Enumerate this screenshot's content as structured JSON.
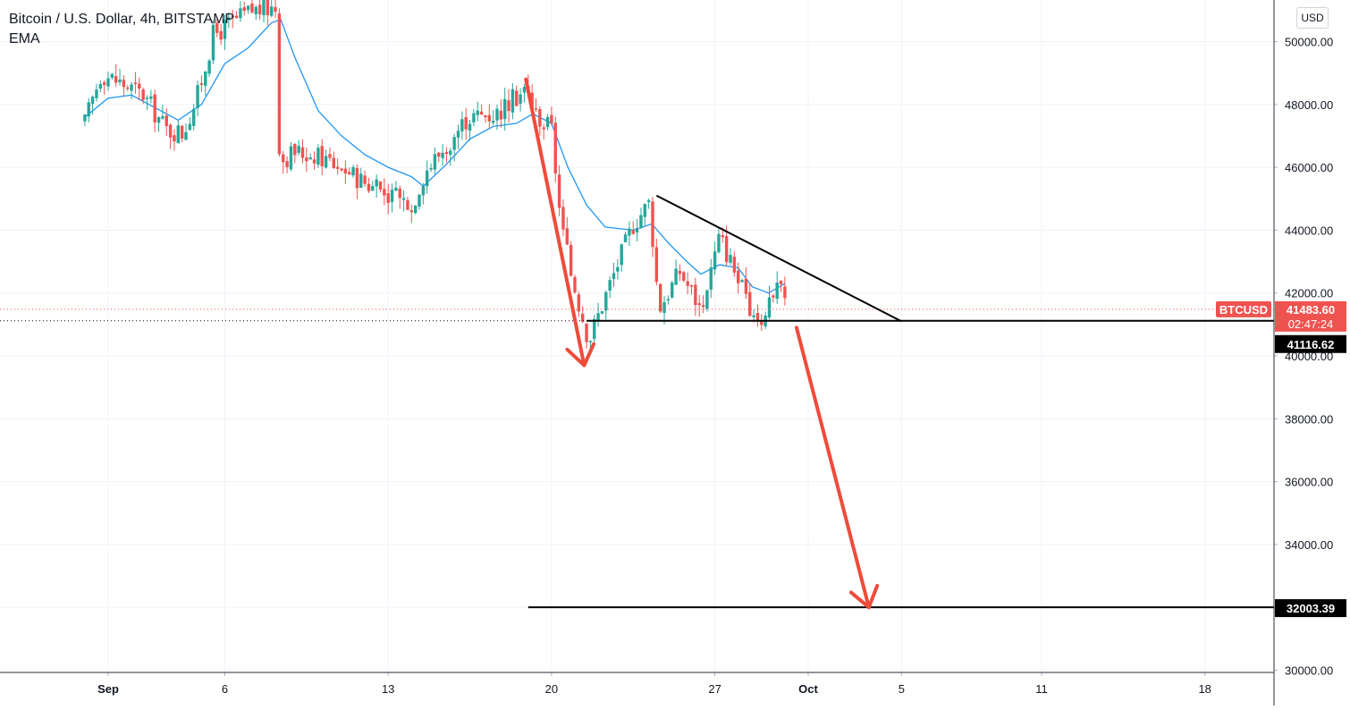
{
  "header": {
    "symbol_title": "Bitcoin / U.S. Dollar, 4h, BITSTAMP",
    "indicator": "EMA"
  },
  "currency_button": "USD",
  "colors": {
    "up": "#26a69a",
    "down": "#ef5350",
    "ema": "#2196f3",
    "arrow": "#ef4b3b",
    "price_label": "#ef5350",
    "drawing_line": "#000000",
    "grid": "#f0f3fa"
  },
  "chart_data": {
    "type": "candlestick",
    "title": "Bitcoin / U.S. Dollar, 4h, BITSTAMP",
    "indicator": "EMA",
    "y_axis": {
      "range": [
        30000,
        51000
      ],
      "ticks": [
        "30000.00",
        "32000.00",
        "34000.00",
        "36000.00",
        "38000.00",
        "40000.00",
        "42000.00",
        "44000.00",
        "46000.00",
        "48000.00",
        "50000.00"
      ]
    },
    "x_axis": {
      "ticks": [
        {
          "label": "Sep",
          "day": 1
        },
        {
          "label": "6",
          "day": 6
        },
        {
          "label": "13",
          "day": 13
        },
        {
          "label": "20",
          "day": 20
        },
        {
          "label": "27",
          "day": 27
        },
        {
          "label": "Oct",
          "day": 31
        },
        {
          "label": "5",
          "day": 35
        },
        {
          "label": "11",
          "day": 41
        },
        {
          "label": "18",
          "day": 48
        }
      ]
    },
    "anchors": [
      {
        "t": 0,
        "p": 47400
      },
      {
        "t": 0.7,
        "p": 49000
      },
      {
        "t": 1.5,
        "p": 48700
      },
      {
        "t": 2.5,
        "p": 48300
      },
      {
        "t": 3.5,
        "p": 47200
      },
      {
        "t": 4.2,
        "p": 47100
      },
      {
        "t": 4.8,
        "p": 48200
      },
      {
        "t": 5.5,
        "p": 50200
      },
      {
        "t": 6.3,
        "p": 50600
      },
      {
        "t": 7.2,
        "p": 51000
      },
      {
        "t": 8.2,
        "p": 51100
      },
      {
        "t": 8.35,
        "p": 46200
      },
      {
        "t": 9.0,
        "p": 46500
      },
      {
        "t": 10.2,
        "p": 46300
      },
      {
        "t": 11.0,
        "p": 46000
      },
      {
        "t": 12.5,
        "p": 45300
      },
      {
        "t": 14.0,
        "p": 44800
      },
      {
        "t": 14.6,
        "p": 45900
      },
      {
        "t": 15.5,
        "p": 46700
      },
      {
        "t": 16.4,
        "p": 47600
      },
      {
        "t": 17.6,
        "p": 47700
      },
      {
        "t": 18.9,
        "p": 48500
      },
      {
        "t": 19.3,
        "p": 47700
      },
      {
        "t": 20.0,
        "p": 47200
      },
      {
        "t": 20.4,
        "p": 44200
      },
      {
        "t": 20.8,
        "p": 42700
      },
      {
        "t": 21.6,
        "p": 40500
      },
      {
        "t": 22.5,
        "p": 42300
      },
      {
        "t": 23.5,
        "p": 44200
      },
      {
        "t": 24.2,
        "p": 44900
      },
      {
        "t": 24.6,
        "p": 41500
      },
      {
        "t": 25.5,
        "p": 42700
      },
      {
        "t": 26.4,
        "p": 41500
      },
      {
        "t": 27.2,
        "p": 43800
      },
      {
        "t": 27.8,
        "p": 42800
      },
      {
        "t": 28.4,
        "p": 41500
      },
      {
        "t": 29.0,
        "p": 41200
      },
      {
        "t": 29.6,
        "p": 42300
      },
      {
        "t": 30.2,
        "p": 41480
      }
    ],
    "ema": [
      {
        "t": 0,
        "p": 47600
      },
      {
        "t": 1,
        "p": 48200
      },
      {
        "t": 2,
        "p": 48300
      },
      {
        "t": 3,
        "p": 47900
      },
      {
        "t": 4,
        "p": 47500
      },
      {
        "t": 5,
        "p": 48000
      },
      {
        "t": 6,
        "p": 49300
      },
      {
        "t": 7,
        "p": 49800
      },
      {
        "t": 8,
        "p": 50600
      },
      {
        "t": 8.4,
        "p": 50700
      },
      {
        "t": 9,
        "p": 49500
      },
      {
        "t": 10,
        "p": 47800
      },
      {
        "t": 11,
        "p": 47000
      },
      {
        "t": 12,
        "p": 46400
      },
      {
        "t": 13,
        "p": 46000
      },
      {
        "t": 14,
        "p": 45700
      },
      {
        "t": 14.5,
        "p": 45400
      },
      {
        "t": 15.5,
        "p": 46100
      },
      {
        "t": 16.5,
        "p": 46900
      },
      {
        "t": 17.5,
        "p": 47300
      },
      {
        "t": 18.5,
        "p": 47400
      },
      {
        "t": 19.2,
        "p": 47700
      },
      {
        "t": 20.0,
        "p": 47400
      },
      {
        "t": 20.7,
        "p": 46000
      },
      {
        "t": 21.5,
        "p": 44800
      },
      {
        "t": 22.3,
        "p": 44100
      },
      {
        "t": 23.5,
        "p": 44000
      },
      {
        "t": 24.3,
        "p": 44200
      },
      {
        "t": 25.0,
        "p": 43600
      },
      {
        "t": 25.8,
        "p": 43000
      },
      {
        "t": 26.4,
        "p": 42600
      },
      {
        "t": 27.2,
        "p": 42900
      },
      {
        "t": 28.0,
        "p": 42800
      },
      {
        "t": 28.6,
        "p": 42200
      },
      {
        "t": 29.3,
        "p": 42000
      },
      {
        "t": 30.0,
        "p": 42300
      }
    ],
    "current_price": {
      "symbol": "BTCUSD",
      "price": "41483.60",
      "countdown": "02:47:24",
      "value": 41483.6
    },
    "horizontal_lines": [
      {
        "value": 41116.62,
        "label": "41116.62",
        "from_day": 21.5
      },
      {
        "value": 32003.39,
        "label": "32003.39",
        "from_day": 19.0
      }
    ],
    "trend_line": {
      "from": {
        "day": 24.5,
        "price": 45100
      },
      "to": {
        "day": 35.0,
        "price": 41100
      }
    },
    "arrows": [
      {
        "from": {
          "day": 18.9,
          "price": 48800
        },
        "to": {
          "day": 21.4,
          "price": 39700
        }
      },
      {
        "from": {
          "day": 30.5,
          "price": 40900
        },
        "to": {
          "day": 33.6,
          "price": 32000
        }
      }
    ]
  }
}
